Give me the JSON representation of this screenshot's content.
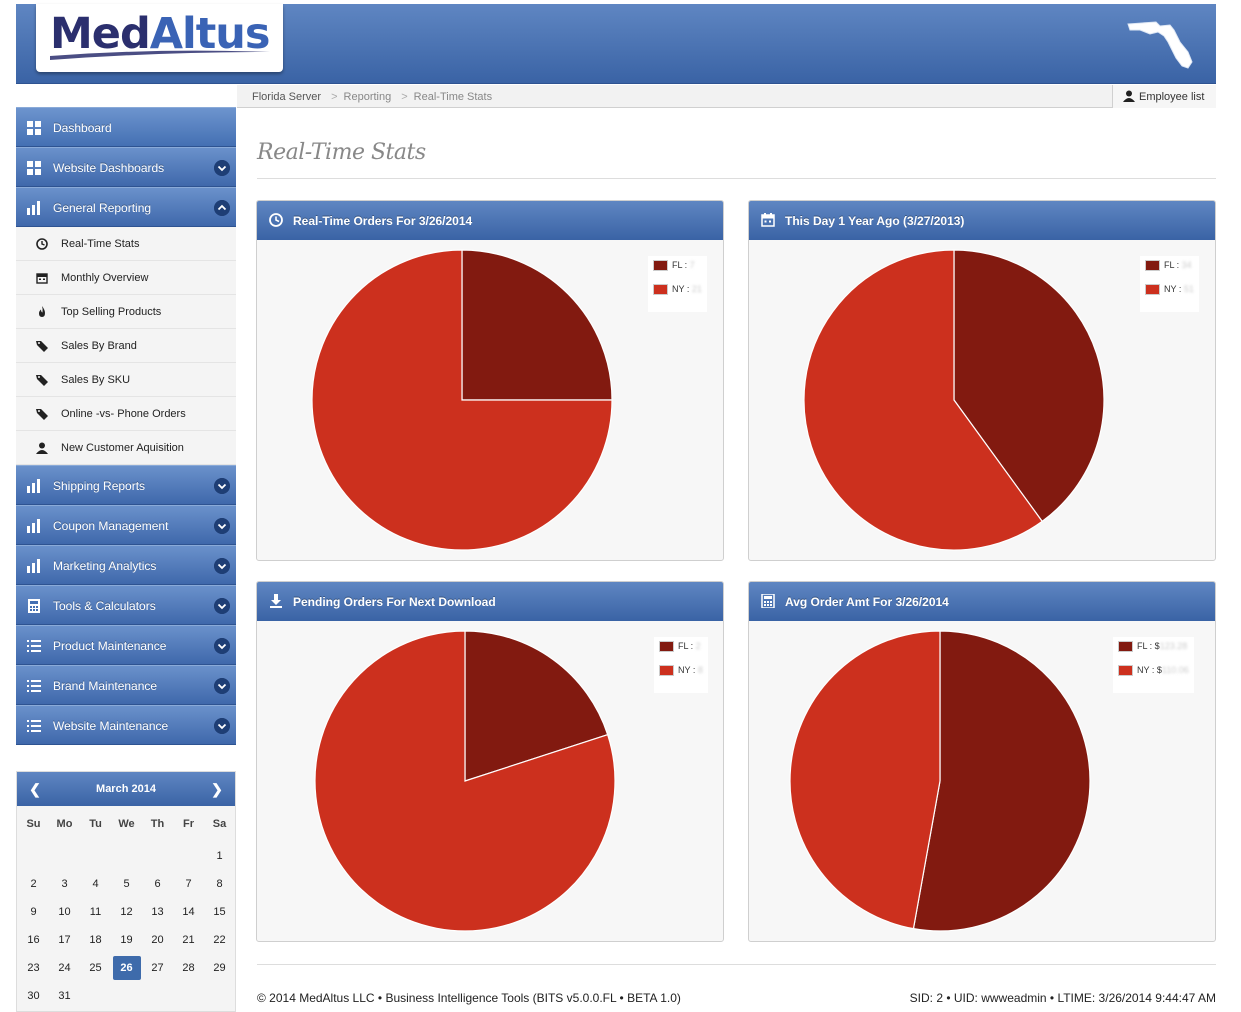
{
  "brand": {
    "logo_med": "Med",
    "logo_altus": "Altus"
  },
  "breadcrumb": [
    "Florida Server",
    "Reporting",
    "Real-Time Stats"
  ],
  "header_action": {
    "employee_list": "Employee list"
  },
  "sidebar": {
    "items": [
      {
        "label": "Dashboard",
        "icon": "grid-icon"
      },
      {
        "label": "Website Dashboards",
        "icon": "grid-icon",
        "expandable": true
      },
      {
        "label": "General Reporting",
        "icon": "bar-chart-icon",
        "expandable": true,
        "expanded": true
      }
    ],
    "sub_items": [
      {
        "label": "Real-Time Stats",
        "icon": "clock-icon"
      },
      {
        "label": "Monthly Overview",
        "icon": "calendar-icon"
      },
      {
        "label": "Top Selling Products",
        "icon": "fire-icon"
      },
      {
        "label": "Sales By Brand",
        "icon": "tag-icon"
      },
      {
        "label": "Sales By SKU",
        "icon": "tag-icon"
      },
      {
        "label": "Online -vs- Phone Orders",
        "icon": "tag-icon"
      },
      {
        "label": "New Customer Aquisition",
        "icon": "user-icon"
      }
    ],
    "items_after": [
      {
        "label": "Shipping Reports",
        "icon": "bar-chart-icon"
      },
      {
        "label": "Coupon Management",
        "icon": "bar-chart-icon"
      },
      {
        "label": "Marketing Analytics",
        "icon": "bar-chart-icon"
      },
      {
        "label": "Tools & Calculators",
        "icon": "calculator-icon"
      },
      {
        "label": "Product Maintenance",
        "icon": "list-icon"
      },
      {
        "label": "Brand Maintenance",
        "icon": "list-icon"
      },
      {
        "label": "Website Maintenance",
        "icon": "list-icon"
      }
    ]
  },
  "calendar": {
    "month_label": "March 2014",
    "weekdays": [
      "Su",
      "Mo",
      "Tu",
      "We",
      "Th",
      "Fr",
      "Sa"
    ],
    "first_weekday": 6,
    "days_in_month": 31,
    "today": 26
  },
  "page": {
    "title": "Real-Time Stats"
  },
  "colors": {
    "fl": "#821a10",
    "ny": "#cc301e",
    "accent": "#3e6bab"
  },
  "panels": [
    {
      "title": "Real-Time Orders For 3/26/2014",
      "icon": "clock-icon",
      "legend": [
        {
          "label": "FL : ",
          "value": "7"
        },
        {
          "label": "NY : ",
          "value": "21"
        }
      ]
    },
    {
      "title": "This Day 1 Year Ago (3/27/2013)",
      "icon": "calendar-icon",
      "legend": [
        {
          "label": "FL : ",
          "value": "34"
        },
        {
          "label": "NY : ",
          "value": "51"
        }
      ]
    },
    {
      "title": "Pending Orders For Next Download",
      "icon": "download-icon",
      "legend": [
        {
          "label": "FL : ",
          "value": "2"
        },
        {
          "label": "NY : ",
          "value": "8"
        }
      ]
    },
    {
      "title": "Avg Order Amt For 3/26/2014",
      "icon": "calculator-icon",
      "legend": [
        {
          "label": "FL : $",
          "value": "123.28"
        },
        {
          "label": "NY : $",
          "value": "110.06"
        }
      ]
    }
  ],
  "chart_data": [
    {
      "type": "pie",
      "title": "Real-Time Orders For 3/26/2014",
      "categories": [
        "FL",
        "NY"
      ],
      "values": [
        7,
        21
      ]
    },
    {
      "type": "pie",
      "title": "This Day 1 Year Ago (3/27/2013)",
      "categories": [
        "FL",
        "NY"
      ],
      "values": [
        34,
        51
      ]
    },
    {
      "type": "pie",
      "title": "Pending Orders For Next Download",
      "categories": [
        "FL",
        "NY"
      ],
      "values": [
        2,
        8
      ]
    },
    {
      "type": "pie",
      "title": "Avg Order Amt For 3/26/2014",
      "categories": [
        "FL",
        "NY"
      ],
      "values": [
        123.28,
        110.06
      ]
    }
  ],
  "footer": {
    "left": "© 2014 MedAltus LLC • Business Intelligence Tools (BITS v5.0.0.FL • BETA 1.0)",
    "right": "SID: 2 • UID: wwweadmin • LTIME: 3/26/2014 9:44:47 AM"
  }
}
